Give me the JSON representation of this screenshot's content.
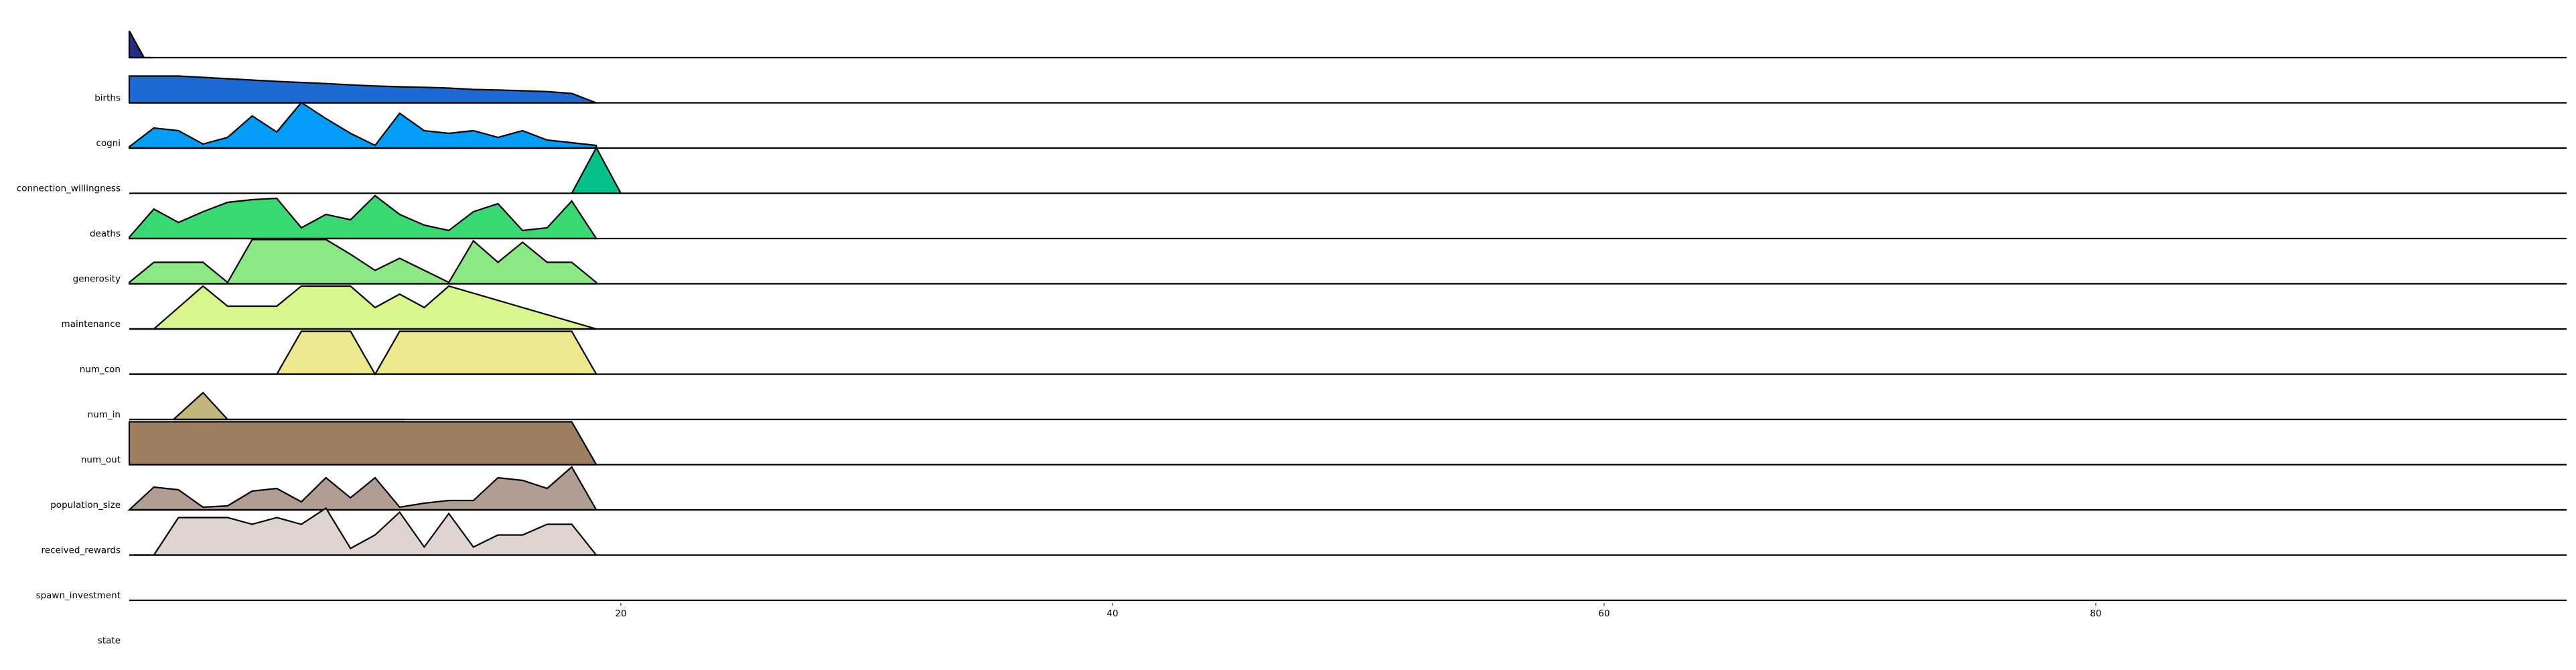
{
  "chart_data": {
    "type": "area",
    "title": "",
    "xlabel": "",
    "ylabel": "",
    "xlim": [
      0,
      99
    ],
    "x_ticks": [
      "20",
      "40",
      "60",
      "80"
    ],
    "layout": "ridgeline",
    "series": [
      {
        "name": "births",
        "color": "#252e80",
        "x": [
          0,
          0.6,
          1
        ],
        "values": [
          1.0,
          0.0,
          0.0
        ]
      },
      {
        "name": "cogni",
        "color": "#1e6ad4",
        "x": [
          0,
          2,
          3,
          4,
          5,
          6,
          7,
          8,
          9,
          10,
          11,
          12,
          13,
          14,
          15,
          16,
          17,
          18,
          19
        ],
        "values": [
          1.0,
          1.0,
          0.95,
          0.9,
          0.85,
          0.8,
          0.76,
          0.72,
          0.67,
          0.63,
          0.6,
          0.58,
          0.55,
          0.5,
          0.48,
          0.45,
          0.42,
          0.35,
          0.0
        ]
      },
      {
        "name": "connection_willingness",
        "color": "#039cf7",
        "x": [
          0,
          1,
          2,
          3,
          4,
          5,
          6,
          7,
          8,
          9,
          10,
          11,
          12,
          13,
          14,
          15,
          16,
          17,
          18,
          19
        ],
        "values": [
          0.05,
          0.75,
          0.65,
          0.15,
          0.4,
          1.2,
          0.6,
          1.7,
          1.1,
          0.55,
          0.1,
          1.3,
          0.65,
          0.55,
          0.65,
          0.4,
          0.65,
          0.3,
          0.2,
          0.1
        ]
      },
      {
        "name": "deaths",
        "color": "#06c28a",
        "x": [
          18,
          19,
          20
        ],
        "values": [
          0.0,
          1.7,
          0.0
        ]
      },
      {
        "name": "generosity",
        "color": "#3ad873",
        "x": [
          0,
          1,
          2,
          3,
          4,
          5,
          6,
          7,
          8,
          9,
          10,
          11,
          12,
          13,
          14,
          15,
          16,
          17,
          18,
          19
        ],
        "values": [
          0.05,
          1.1,
          0.6,
          1.0,
          1.35,
          1.45,
          1.5,
          0.4,
          0.9,
          0.7,
          1.6,
          0.9,
          0.5,
          0.3,
          1.0,
          1.3,
          0.3,
          0.4,
          1.4,
          0.0
        ]
      },
      {
        "name": "maintenance",
        "color": "#8ce884",
        "x": [
          0,
          1,
          3,
          4,
          5,
          8,
          9,
          10,
          11,
          12,
          13,
          14,
          15,
          16,
          17,
          18,
          19
        ],
        "values": [
          0.05,
          0.8,
          0.8,
          0.05,
          1.65,
          1.65,
          1.1,
          0.5,
          0.95,
          0.5,
          0.05,
          1.6,
          0.8,
          1.55,
          0.8,
          0.8,
          0.05
        ]
      },
      {
        "name": "num_con",
        "color": "#d9f58e",
        "x": [
          0,
          1,
          3,
          4,
          6,
          7,
          9,
          10,
          11,
          12,
          13,
          19
        ],
        "values": [
          0.0,
          0.0,
          1.6,
          0.85,
          0.85,
          1.6,
          1.6,
          0.8,
          1.3,
          0.8,
          1.6,
          0.0
        ]
      },
      {
        "name": "num_in",
        "color": "#ede78f",
        "x": [
          0,
          6,
          7,
          9,
          10,
          11,
          18,
          19
        ],
        "values": [
          0.0,
          0.0,
          1.6,
          1.6,
          0.0,
          1.6,
          1.6,
          0.0
        ]
      },
      {
        "name": "num_out",
        "color": "#c4b57b",
        "x": [
          1.8,
          3,
          4,
          11.2
        ],
        "values": [
          0.0,
          1.0,
          0.0,
          0.0
        ]
      },
      {
        "name": "population_size",
        "color": "#9e7f60",
        "x": [
          0,
          18,
          19
        ],
        "values": [
          1.6,
          1.6,
          0.0
        ]
      },
      {
        "name": "received_rewards",
        "color": "#b19d94",
        "x": [
          0,
          1,
          2,
          3,
          4,
          5,
          6,
          7,
          8,
          9,
          10,
          11,
          12,
          13,
          14,
          15,
          16,
          17,
          18,
          19
        ],
        "values": [
          0.0,
          0.85,
          0.75,
          0.1,
          0.15,
          0.7,
          0.8,
          0.3,
          1.2,
          0.45,
          1.2,
          0.1,
          0.25,
          0.35,
          0.35,
          1.2,
          1.1,
          0.8,
          1.6,
          0.0
        ]
      },
      {
        "name": "spawn_investment",
        "color": "#e0d4d1",
        "x": [
          0,
          1,
          2,
          3,
          4,
          5,
          6,
          7,
          8,
          9,
          10,
          11,
          12,
          13,
          14,
          15,
          16,
          17,
          18,
          19
        ],
        "values": [
          0.0,
          0.0,
          1.4,
          1.4,
          1.4,
          1.15,
          1.4,
          1.15,
          1.75,
          0.25,
          0.75,
          1.6,
          0.3,
          1.55,
          0.3,
          0.75,
          0.75,
          1.15,
          1.15,
          0.0
        ]
      }
    ],
    "row_labels": [
      "births",
      "cogni",
      "connection_willingness",
      "deaths",
      "generosity",
      "maintenance",
      "num_con",
      "num_in",
      "num_out",
      "population_size",
      "received_rewards",
      "spawn_investment",
      "state"
    ]
  }
}
